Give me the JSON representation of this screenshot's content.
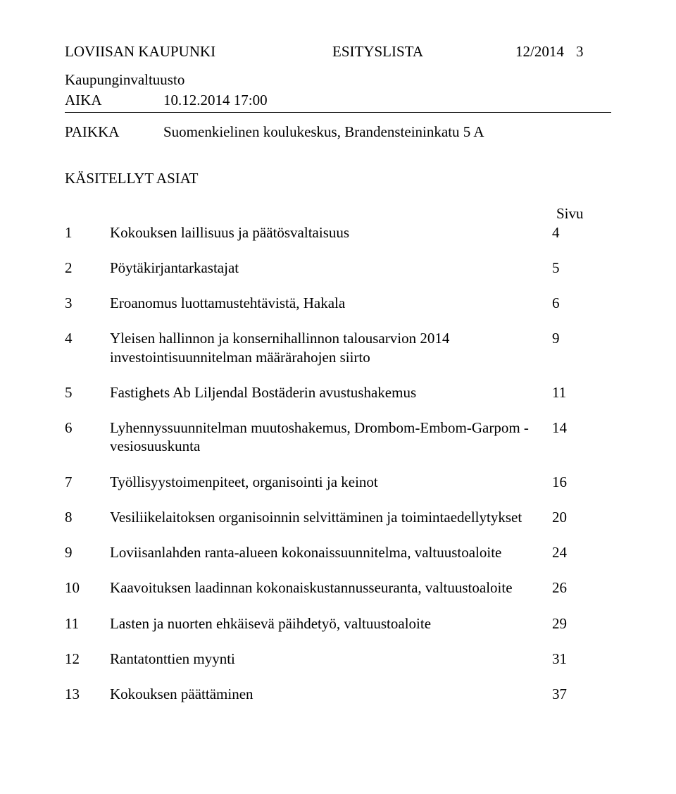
{
  "header": {
    "org": "LOVIISAN KAUPUNKI",
    "docType": "ESITYSLISTA",
    "docNum": "12/2014",
    "pageNum": "3",
    "subheader": "Kaupunginvaltuusto",
    "aikaLabel": "AIKA",
    "aikaValue": "10.12.2014 17:00",
    "paikkaLabel": "PAIKKA",
    "paikkaValue": "Suomenkielinen koulukeskus, Brandensteininkatu 5 A"
  },
  "listHeader": "KÄSITELLYT ASIAT",
  "pageColLabel": "Sivu",
  "items": [
    {
      "num": "1",
      "text": "Kokouksen laillisuus ja päätösvaltaisuus",
      "page": "4"
    },
    {
      "num": "2",
      "text": "Pöytäkirjantarkastajat",
      "page": "5"
    },
    {
      "num": "3",
      "text": "Eroanomus luottamustehtävistä, Hakala",
      "page": "6"
    },
    {
      "num": "4",
      "text": "Yleisen hallinnon ja konsernihallinnon talousarvion 2014 investointisuunnitelman määrärahojen siirto",
      "page": "9"
    },
    {
      "num": "5",
      "text": "Fastighets Ab Liljendal Bostäderin avustushakemus",
      "page": "11"
    },
    {
      "num": "6",
      "text": "Lyhennyssuunnitelman muutoshakemus, Drombom-Embom-Garpom -vesiosuuskunta",
      "page": "14"
    },
    {
      "num": "7",
      "text": "Työllisyystoimenpiteet, organisointi ja keinot",
      "page": "16"
    },
    {
      "num": "8",
      "text": "Vesiliikelaitoksen organisoinnin selvittäminen ja toimintaedellytykset",
      "page": "20"
    },
    {
      "num": "9",
      "text": "Loviisanlahden ranta-alueen kokonaissuunnitelma, valtuustoaloite",
      "page": "24"
    },
    {
      "num": "10",
      "text": "Kaavoituksen laadinnan kokonaiskustannusseuranta, valtuustoaloite",
      "page": "26"
    },
    {
      "num": "11",
      "text": "Lasten ja nuorten ehkäisevä päihdetyö, valtuustoaloite",
      "page": "29"
    },
    {
      "num": "12",
      "text": "Rantatonttien myynti",
      "page": "31"
    },
    {
      "num": "13",
      "text": "Kokouksen päättäminen",
      "page": "37"
    }
  ]
}
